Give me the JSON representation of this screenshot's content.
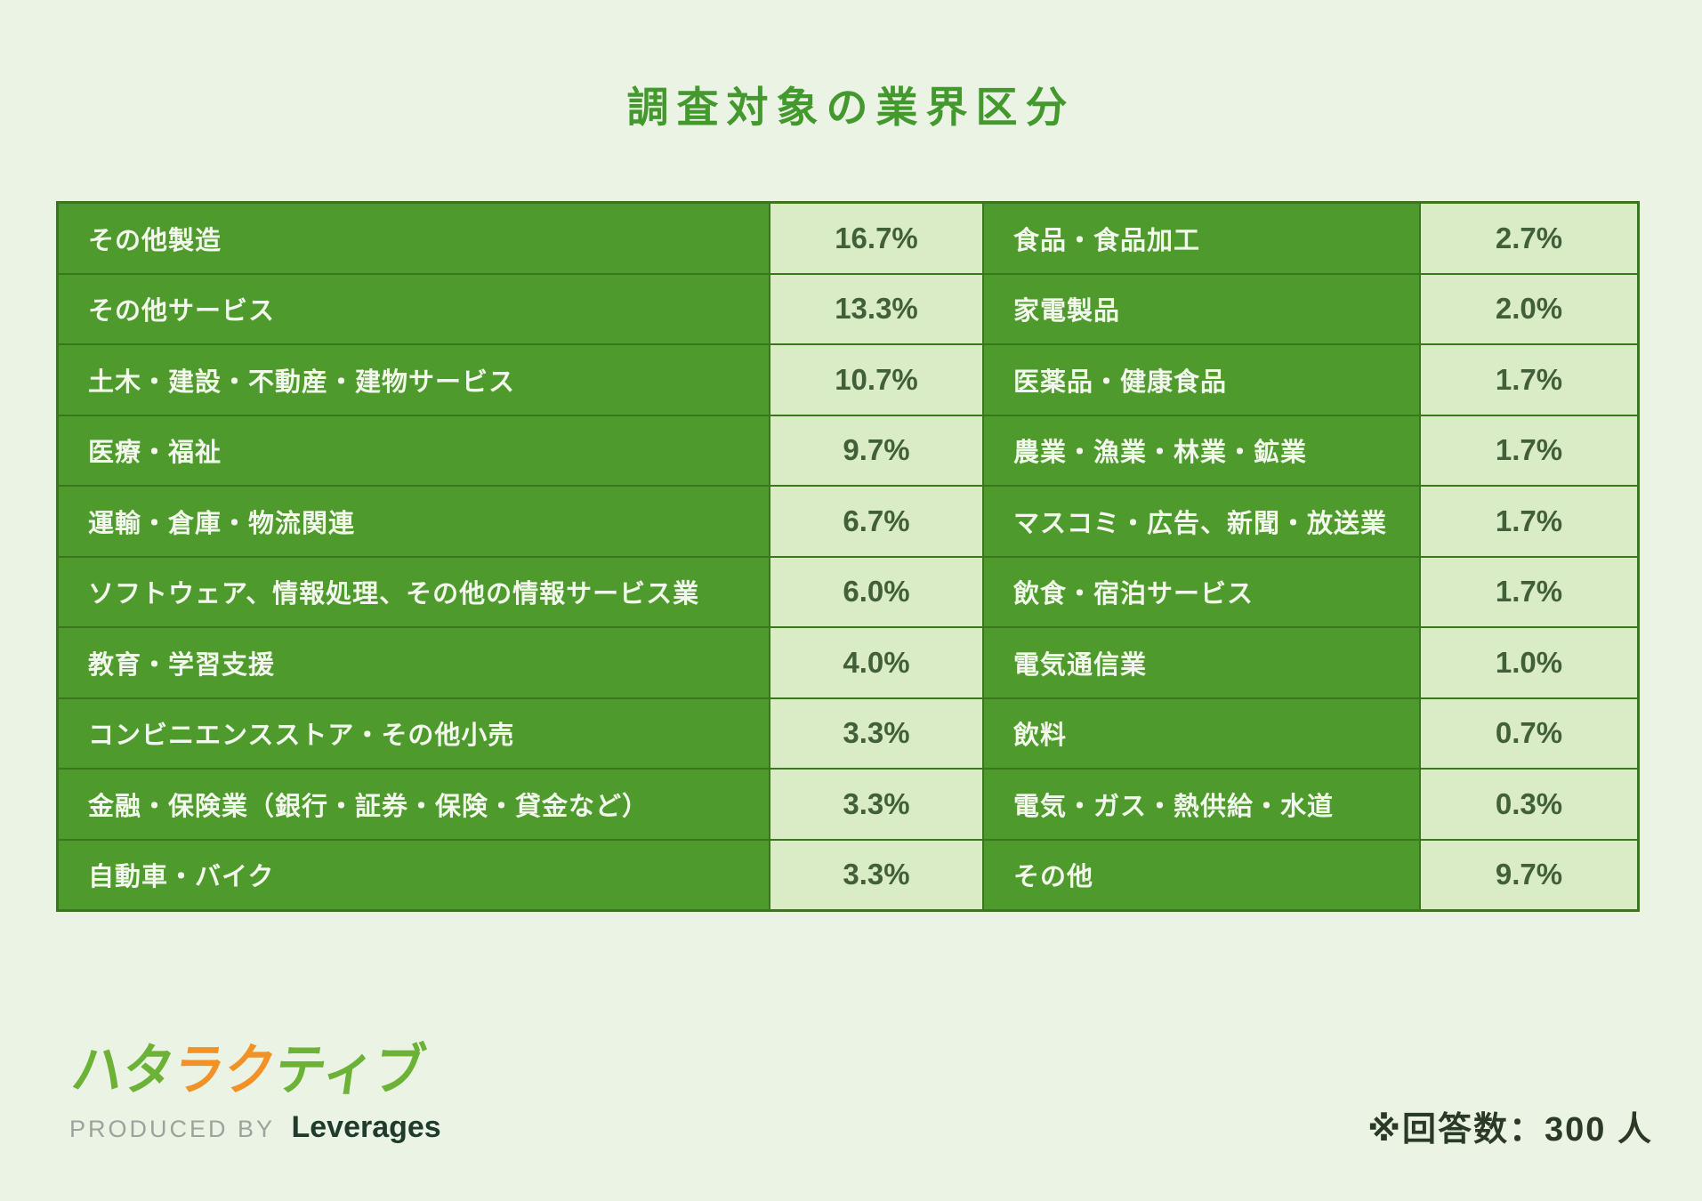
{
  "title": "調査対象の業界区分",
  "colors": {
    "background": "#ebf4e4",
    "cell_green": "#4f9a2c",
    "cell_light_green": "#d9ecc6",
    "grid_border": "#39761d",
    "title_green": "#43982e",
    "label_text": "#f2f8ec",
    "value_text": "#41603a",
    "logo_green": "#6cb236",
    "logo_orange": "#f19126",
    "produced_gray": "#9aa39c",
    "company_dark": "#1f3b2c",
    "note_dark": "#2b3a26"
  },
  "table": {
    "rows": [
      {
        "left_label": "その他製造",
        "left_value": "16.7%",
        "right_label": "食品・食品加工",
        "right_value": "2.7%"
      },
      {
        "left_label": "その他サービス",
        "left_value": "13.3%",
        "right_label": "家電製品",
        "right_value": "2.0%"
      },
      {
        "left_label": "土木・建設・不動産・建物サービス",
        "left_value": "10.7%",
        "right_label": "医薬品・健康食品",
        "right_value": "1.7%"
      },
      {
        "left_label": "医療・福祉",
        "left_value": "9.7%",
        "right_label": "農業・漁業・林業・鉱業",
        "right_value": "1.7%"
      },
      {
        "left_label": "運輸・倉庫・物流関連",
        "left_value": "6.7%",
        "right_label": "マスコミ・広告、新聞・放送業",
        "right_value": "1.7%"
      },
      {
        "left_label": "ソフトウェア、情報処理、その他の情報サービス業",
        "left_value": "6.0%",
        "right_label": "飲食・宿泊サービス",
        "right_value": "1.7%"
      },
      {
        "left_label": "教育・学習支援",
        "left_value": "4.0%",
        "right_label": "電気通信業",
        "right_value": "1.0%"
      },
      {
        "left_label": "コンビニエンスストア・その他小売",
        "left_value": "3.3%",
        "right_label": "飲料",
        "right_value": "0.7%"
      },
      {
        "left_label": "金融・保険業（銀行・証券・保険・貸金など）",
        "left_value": "3.3%",
        "right_label": "電気・ガス・熱供給・水道",
        "right_value": "0.3%"
      },
      {
        "left_label": "自動車・バイク",
        "left_value": "3.3%",
        "right_label": "その他",
        "right_value": "9.7%"
      }
    ]
  },
  "footer": {
    "logo": {
      "part1": "ハタ",
      "part2": "ラク",
      "part3": "ティブ"
    },
    "produced_by": "PRODUCED BY",
    "company": "Leverages",
    "note": "※回答数：300 人"
  },
  "chart_data": {
    "type": "table",
    "title": "調査対象の業界区分",
    "unit": "%",
    "note": "※回答数：300 人",
    "respondents": 300,
    "entries": [
      {
        "label": "その他製造",
        "value": 16.7
      },
      {
        "label": "その他サービス",
        "value": 13.3
      },
      {
        "label": "土木・建設・不動産・建物サービス",
        "value": 10.7
      },
      {
        "label": "医療・福祉",
        "value": 9.7
      },
      {
        "label": "運輸・倉庫・物流関連",
        "value": 6.7
      },
      {
        "label": "ソフトウェア、情報処理、その他の情報サービス業",
        "value": 6.0
      },
      {
        "label": "教育・学習支援",
        "value": 4.0
      },
      {
        "label": "コンビニエンスストア・その他小売",
        "value": 3.3
      },
      {
        "label": "金融・保険業（銀行・証券・保険・貸金など）",
        "value": 3.3
      },
      {
        "label": "自動車・バイク",
        "value": 3.3
      },
      {
        "label": "食品・食品加工",
        "value": 2.7
      },
      {
        "label": "家電製品",
        "value": 2.0
      },
      {
        "label": "医薬品・健康食品",
        "value": 1.7
      },
      {
        "label": "農業・漁業・林業・鉱業",
        "value": 1.7
      },
      {
        "label": "マスコミ・広告、新聞・放送業",
        "value": 1.7
      },
      {
        "label": "飲食・宿泊サービス",
        "value": 1.7
      },
      {
        "label": "電気通信業",
        "value": 1.0
      },
      {
        "label": "飲料",
        "value": 0.7
      },
      {
        "label": "電気・ガス・熱供給・水道",
        "value": 0.3
      },
      {
        "label": "その他",
        "value": 9.7
      }
    ]
  }
}
